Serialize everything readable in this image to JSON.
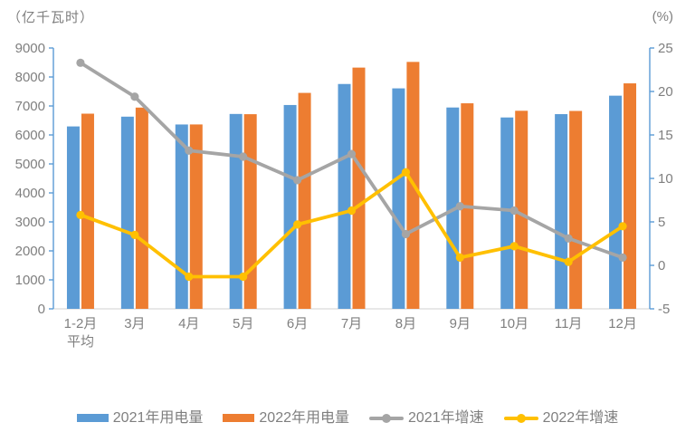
{
  "axis_title_left": "（亿千瓦时）",
  "axis_title_right": "(%)",
  "colors": {
    "axis_line": "#5B9BD5",
    "baseline": "#D9D9D9",
    "label_text": "#7F7F7F",
    "bar_2021": "#5B9BD5",
    "bar_2022": "#ED7D31",
    "line_2021": "#A5A5A5",
    "line_2022": "#FFC000"
  },
  "chart_data": {
    "type": "combo",
    "categories": [
      "1-2月\n平均",
      "3月",
      "4月",
      "5月",
      "6月",
      "7月",
      "8月",
      "9月",
      "10月",
      "11月",
      "12月"
    ],
    "series": [
      {
        "key": "consumption-2021",
        "name": "2021年用电量",
        "type": "bar",
        "axis": "left",
        "color": "#5B9BD5",
        "values": [
          6294,
          6631,
          6361,
          6724,
          7033,
          7758,
          7607,
          6947,
          6603,
          6718,
          7355
        ]
      },
      {
        "key": "consumption-2022",
        "name": "2022年用电量",
        "type": "bar",
        "axis": "left",
        "color": "#ED7D31",
        "values": [
          6734,
          6944,
          6362,
          6716,
          7451,
          8324,
          8520,
          7092,
          6834,
          6828,
          7780
        ]
      },
      {
        "key": "growth-2021",
        "name": "2021年增速",
        "type": "line",
        "axis": "right",
        "color": "#A5A5A5",
        "values": [
          23.3,
          19.4,
          13.2,
          12.5,
          9.8,
          12.8,
          3.6,
          6.8,
          6.3,
          3.1,
          0.9
        ]
      },
      {
        "key": "growth-2022",
        "name": "2022年增速",
        "type": "line",
        "axis": "right",
        "color": "#FFC000",
        "values": [
          5.8,
          3.5,
          -1.3,
          -1.3,
          4.7,
          6.3,
          10.7,
          0.9,
          2.2,
          0.4,
          4.5
        ]
      }
    ],
    "left_axis": {
      "min": 0,
      "max": 9000,
      "step": 1000,
      "unit": "亿千瓦时"
    },
    "right_axis": {
      "min": -5,
      "max": 25,
      "step": 5,
      "unit": "%"
    },
    "grid": false,
    "legend_position": "bottom"
  }
}
